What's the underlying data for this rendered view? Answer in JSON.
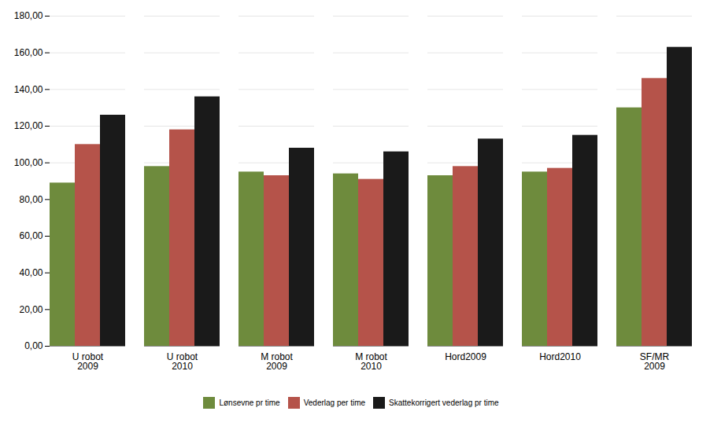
{
  "chart_data": {
    "type": "bar",
    "categories": [
      "U robot\n2009",
      "U robot\n2010",
      "M robot\n2009",
      "M robot\n2010",
      "Hord2009",
      "Hord2010",
      "SF/MR\n2009"
    ],
    "series": [
      {
        "name": "Lønsevne pr time",
        "color": "#6e8b3d",
        "values": [
          89,
          98,
          95,
          94,
          93,
          95,
          130
        ]
      },
      {
        "name": "Vederlag per time",
        "color": "#b5534a",
        "values": [
          110,
          118,
          93,
          91,
          98,
          97,
          146
        ]
      },
      {
        "name": "Skattekorrigert vederlag pr time",
        "color": "#1a1a1a",
        "values": [
          126,
          136,
          108,
          106,
          113,
          115,
          163
        ]
      }
    ],
    "ylim": [
      0,
      180
    ],
    "yticks": [
      {
        "value": 0,
        "label": "0,00"
      },
      {
        "value": 20,
        "label": "20,00"
      },
      {
        "value": 40,
        "label": "40,00"
      },
      {
        "value": 60,
        "label": "60,00"
      },
      {
        "value": 80,
        "label": "80,00"
      },
      {
        "value": 100,
        "label": "100,00"
      },
      {
        "value": 120,
        "label": "120,00"
      },
      {
        "value": 140,
        "label": "140,00"
      },
      {
        "value": 160,
        "label": "160,00"
      },
      {
        "value": 180,
        "label": "180,00"
      }
    ],
    "grid": true,
    "legend": "bottom"
  }
}
